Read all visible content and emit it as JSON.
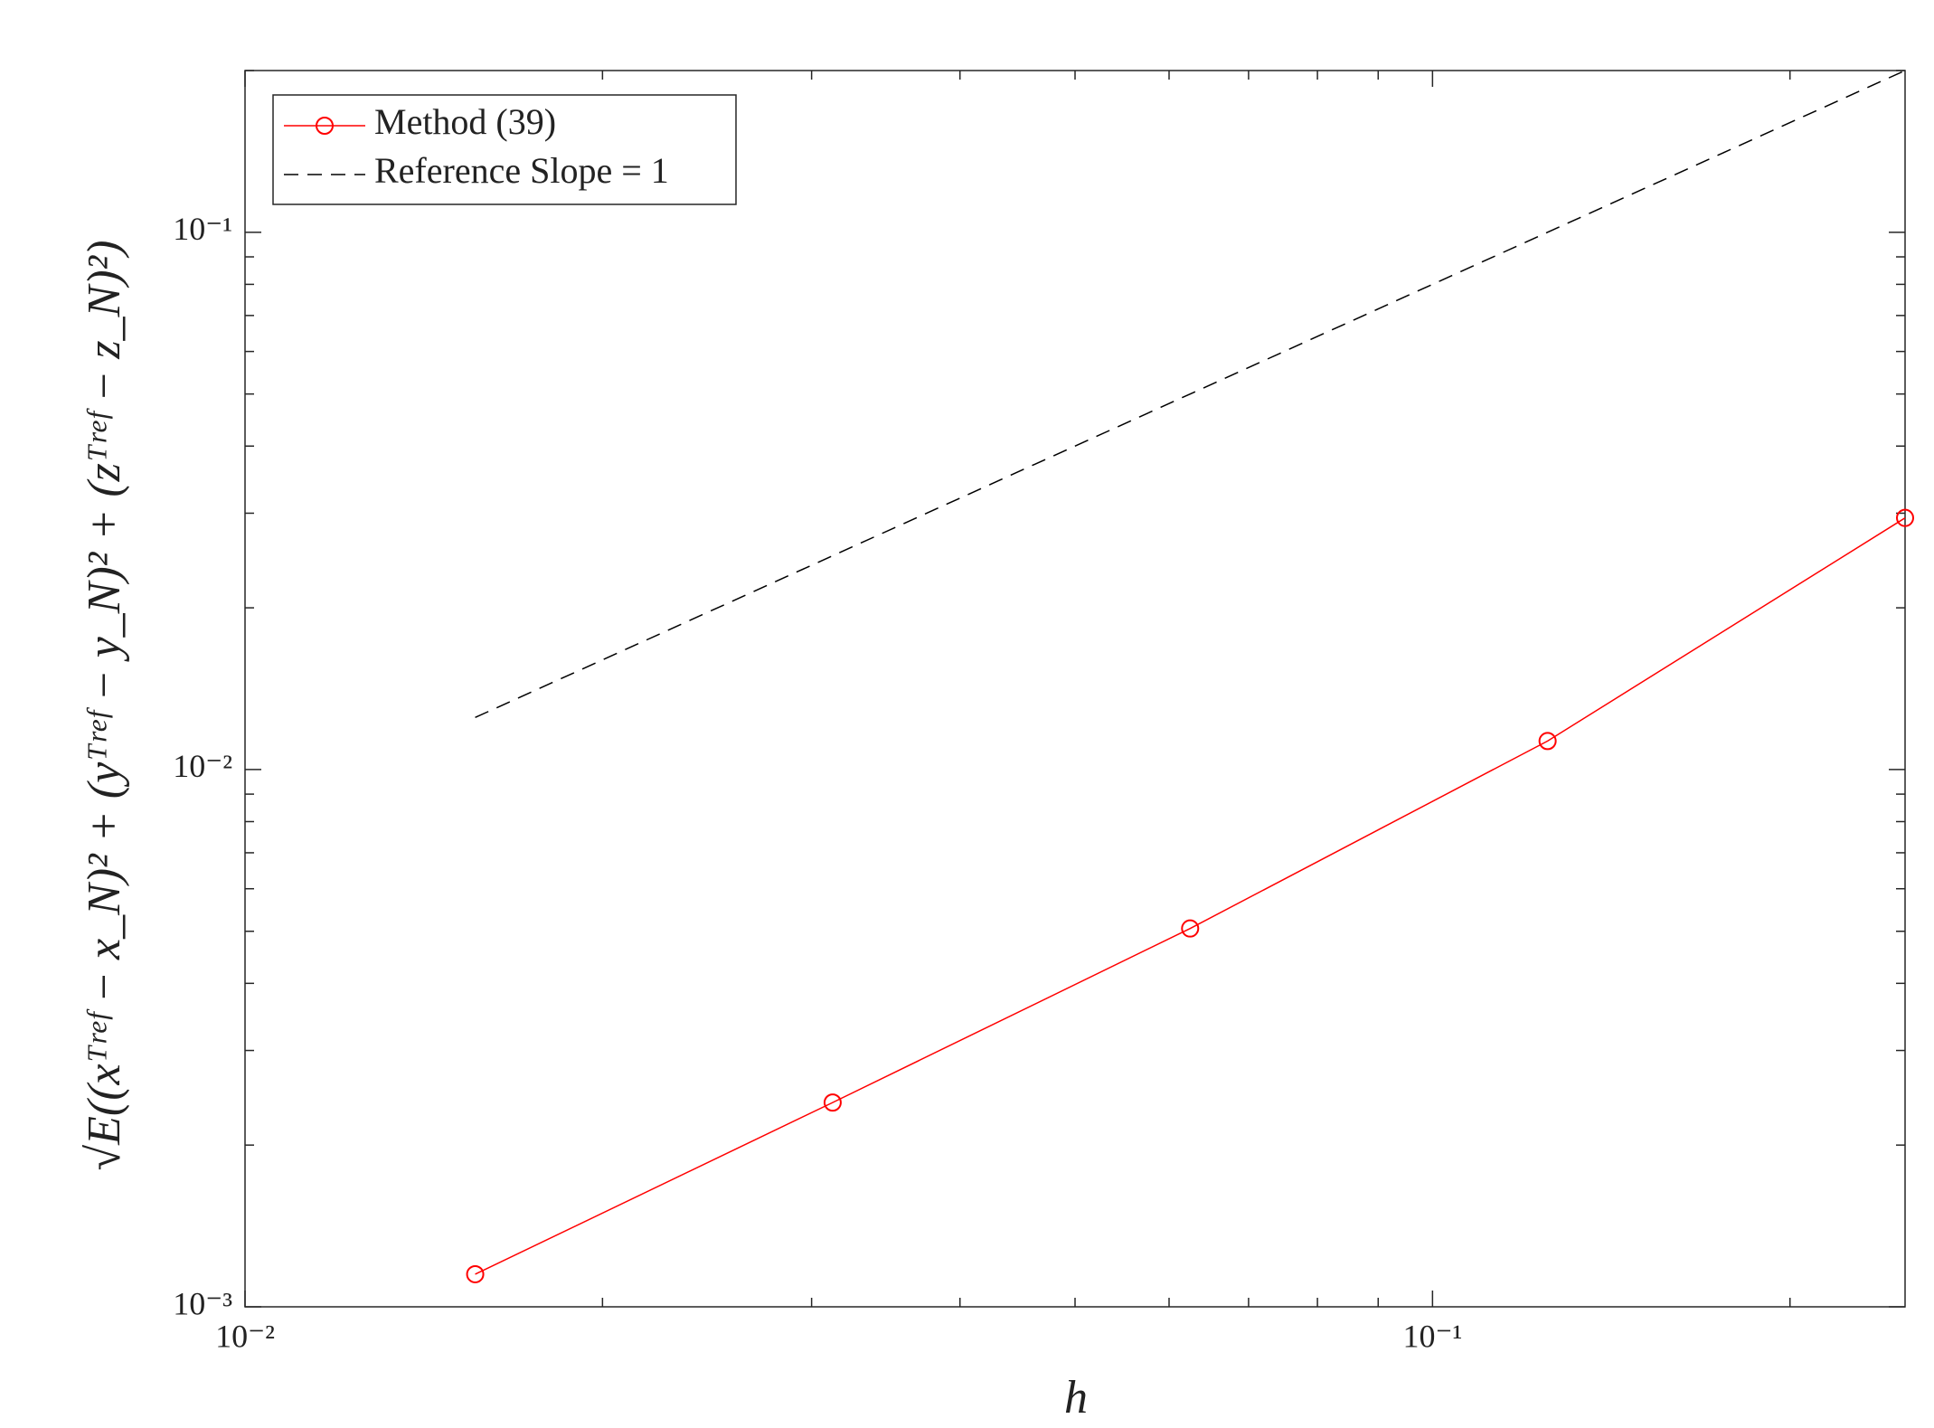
{
  "chart_data": {
    "type": "line",
    "xlabel": "h",
    "ylabel": "√E((xᵀʳᵉᶠ − x_N)² + (yᵀʳᵉᶠ − y_N)² + (zᵀʳᵉᶠ − z_N)²)",
    "x": [
      0.015625,
      0.03125,
      0.0625,
      0.125,
      0.25
    ],
    "series": [
      {
        "name": "Method (39)",
        "color": "#ff0000",
        "marker": "circle",
        "dash": "solid",
        "values": [
          0.00115,
          0.0024,
          0.00506,
          0.0113,
          0.0294
        ]
      },
      {
        "name": "Reference Slope = 1",
        "color": "#000000",
        "marker": "none",
        "dash": "dashed",
        "values": [
          0.0125,
          0.025,
          0.05,
          0.1,
          0.2
        ]
      }
    ],
    "xscale": "log",
    "yscale": "log",
    "xlim": [
      0.01,
      0.25
    ],
    "ylim": [
      0.001,
      0.2
    ],
    "xticks": [
      {
        "value": 0.01,
        "label": "10⁻²"
      },
      {
        "value": 0.1,
        "label": "10⁻¹"
      }
    ],
    "yticks": [
      {
        "value": 0.001,
        "label": "10⁻³"
      },
      {
        "value": 0.01,
        "label": "10⁻²"
      },
      {
        "value": 0.1,
        "label": "10⁻¹"
      }
    ],
    "xminorticks": [
      0.02,
      0.03,
      0.04,
      0.05,
      0.06,
      0.07,
      0.08,
      0.09,
      0.2
    ],
    "yminorticks": [
      0.002,
      0.003,
      0.004,
      0.005,
      0.006,
      0.007,
      0.008,
      0.009,
      0.02,
      0.03,
      0.04,
      0.05,
      0.06,
      0.07,
      0.08,
      0.09,
      0.2
    ],
    "grid": false,
    "legend": "upper left"
  }
}
